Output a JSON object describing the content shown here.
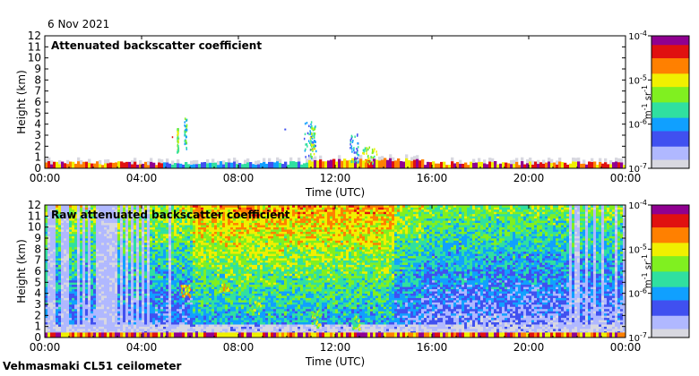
{
  "date_label": "6 Nov 2021",
  "footer_label": "Vehmasmaki CL51 ceilometer",
  "colors": {
    "colormap": [
      "#d8d8e0",
      "#b0b8ff",
      "#4050f0",
      "#10a0ff",
      "#30e0a0",
      "#80f020",
      "#f0f000",
      "#ff8000",
      "#e01010",
      "#900090"
    ]
  },
  "chart_data": [
    {
      "type": "heatmap",
      "title": "Attenuated backscatter coefficient",
      "xlabel": "Time (UTC)",
      "ylabel": "Height (km)",
      "x_ticks": [
        "00:00",
        "04:00",
        "08:00",
        "12:00",
        "16:00",
        "20:00",
        "00:00"
      ],
      "y_ticks": [
        "0",
        "1",
        "2",
        "3",
        "4",
        "5",
        "6",
        "7",
        "8",
        "9",
        "10",
        "11",
        "12"
      ],
      "ylim": [
        0,
        12
      ],
      "colorbar": {
        "scale": "log",
        "range": [
          1e-07,
          0.0001
        ],
        "tick_labels": [
          {
            "base": "10",
            "exp": "-4"
          },
          {
            "base": "10",
            "exp": "-5"
          },
          {
            "base": "10",
            "exp": "-6"
          },
          {
            "base": "10",
            "exp": "-7"
          }
        ],
        "unit": {
          "m_exp": "-1",
          "sr_exp": "-1"
        }
      }
    },
    {
      "type": "heatmap",
      "title": "Raw attenuated backscatter coefficient",
      "xlabel": "Time (UTC)",
      "ylabel": "Height (km)",
      "x_ticks": [
        "00:00",
        "04:00",
        "08:00",
        "12:00",
        "16:00",
        "20:00",
        "00:00"
      ],
      "y_ticks": [
        "0",
        "1",
        "2",
        "3",
        "4",
        "5",
        "6",
        "7",
        "8",
        "9",
        "10",
        "11",
        "12"
      ],
      "ylim": [
        0,
        12
      ],
      "colorbar": {
        "scale": "log",
        "range": [
          1e-07,
          0.0001
        ],
        "tick_labels": [
          {
            "base": "10",
            "exp": "-4"
          },
          {
            "base": "10",
            "exp": "-5"
          },
          {
            "base": "10",
            "exp": "-6"
          },
          {
            "base": "10",
            "exp": "-7"
          }
        ],
        "unit": {
          "m_exp": "-1",
          "sr_exp": "-1"
        }
      }
    }
  ]
}
